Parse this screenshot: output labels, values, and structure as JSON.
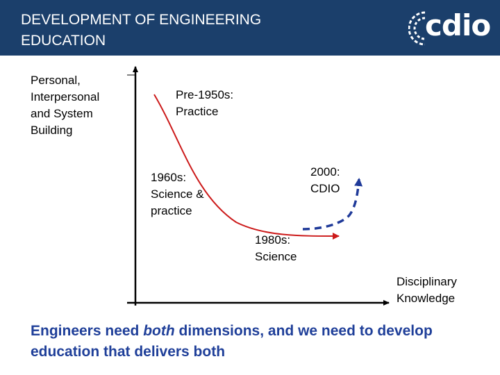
{
  "header": {
    "title": "DEVELOPMENT OF ENGINEERING\nEDUCATION",
    "logo_text": "cdio",
    "background": "#1b3f6b"
  },
  "axes": {
    "y_label": "Personal,\nInterpersonal\nand System\nBuilding",
    "x_label": "Disciplinary\nKnowledge"
  },
  "stages": {
    "pre1950": "Pre-1950s:\nPractice",
    "s1960": "1960s:\nScience &\npractice",
    "s1980": "1980s:\nScience",
    "s2000": "2000:\nCDIO"
  },
  "footer": {
    "part1": "Engineers need ",
    "emphasis": "both",
    "part2": " dimensions, and we need to develop education that delivers both"
  },
  "colors": {
    "curve": "#cc1a1a",
    "dashed": "#1f3a99",
    "axis": "#000000",
    "footer_text": "#1f3f99"
  }
}
